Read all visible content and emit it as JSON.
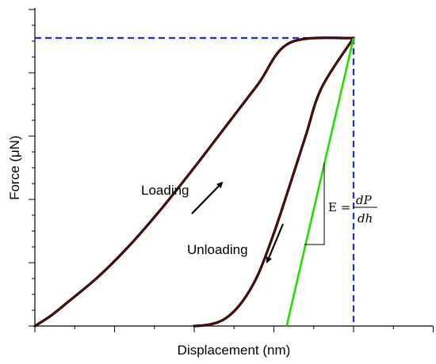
{
  "chart_data": {
    "type": "line",
    "xlabel": "Displacement (nm)",
    "ylabel": "Force (μN)",
    "xlim": [
      0,
      10
    ],
    "ylim": [
      0,
      10
    ],
    "grid": false,
    "x_tick_labels_shown": false,
    "y_tick_labels_shown": false,
    "series": [
      {
        "values": [
          {
            "x": 0.0,
            "y": 0.0
          },
          {
            "x": 0.5,
            "y": 0.32
          },
          {
            "x": 1.0,
            "y": 0.72
          },
          {
            "x": 2.0,
            "y": 1.55
          },
          {
            "x": 3.0,
            "y": 2.55
          },
          {
            "x": 4.0,
            "y": 3.7
          },
          {
            "x": 5.0,
            "y": 4.95
          },
          {
            "x": 6.0,
            "y": 6.25
          },
          {
            "x": 7.0,
            "y": 7.55
          },
          {
            "x": 8.0,
            "y": 8.85
          },
          {
            "x": 10.0,
            "y": 9.0
          }
        ],
        "color": "#1a0000"
      },
      {
        "values": [
          {
            "x": 5.0,
            "y": 0.0
          },
          {
            "x": 5.5,
            "y": 0.05
          },
          {
            "x": 6.0,
            "y": 0.25
          },
          {
            "x": 6.5,
            "y": 0.75
          },
          {
            "x": 7.0,
            "y": 1.6
          },
          {
            "x": 7.5,
            "y": 2.9
          },
          {
            "x": 8.0,
            "y": 4.4
          },
          {
            "x": 8.5,
            "y": 5.95
          },
          {
            "x": 9.0,
            "y": 7.45
          },
          {
            "x": 10.0,
            "y": 9.0
          }
        ],
        "color": "#1a0000"
      },
      {
        "values": [
          {
            "x": 7.9,
            "y": 0.0
          },
          {
            "x": 10.0,
            "y": 9.0
          }
        ],
        "color": "#22dd00"
      }
    ],
    "peak": {
      "x": 10.0,
      "y": 9.0
    },
    "reference_lines": {
      "color": "#1f2ed8",
      "style": "dashed"
    },
    "annotations": {
      "loading": "Loading",
      "unloading": "Unloading",
      "formula_lhs": "E =",
      "formula_num": "dP",
      "formula_den": "dh"
    }
  }
}
